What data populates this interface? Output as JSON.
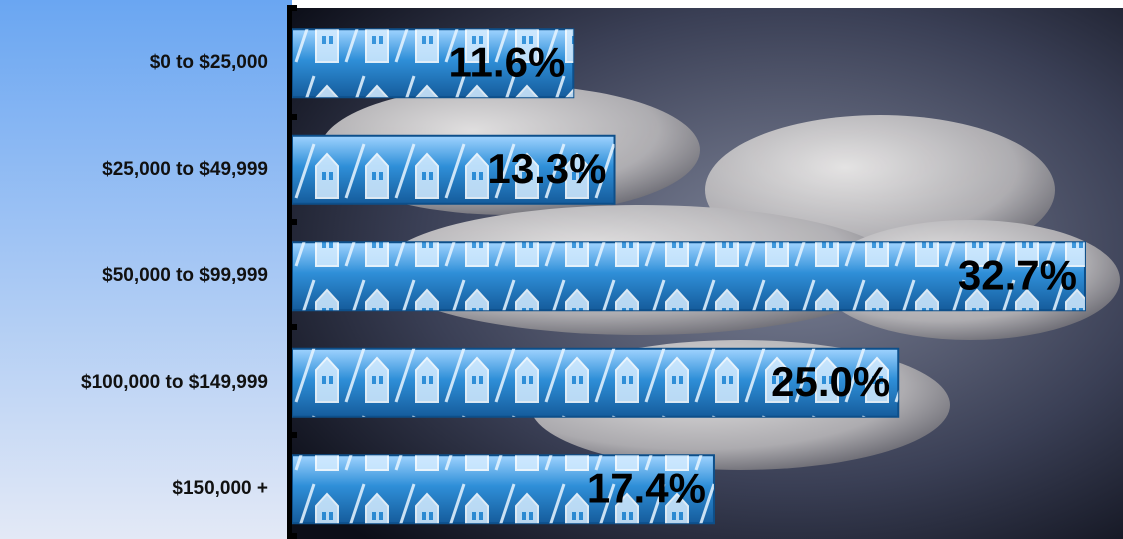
{
  "chart_data": {
    "type": "bar",
    "orientation": "horizontal",
    "categories": [
      "$0 to $25,000",
      "$25,000 to $49,999",
      "$50,000 to $99,999",
      "$100,000 to $149,999",
      "$150,000 +"
    ],
    "values": [
      11.6,
      13.3,
      32.7,
      25.0,
      17.4
    ],
    "value_labels": [
      "11.6%",
      "13.3%",
      "32.7%",
      "25.0%",
      "17.4%"
    ],
    "color": "#2f8fd8"
  }
}
